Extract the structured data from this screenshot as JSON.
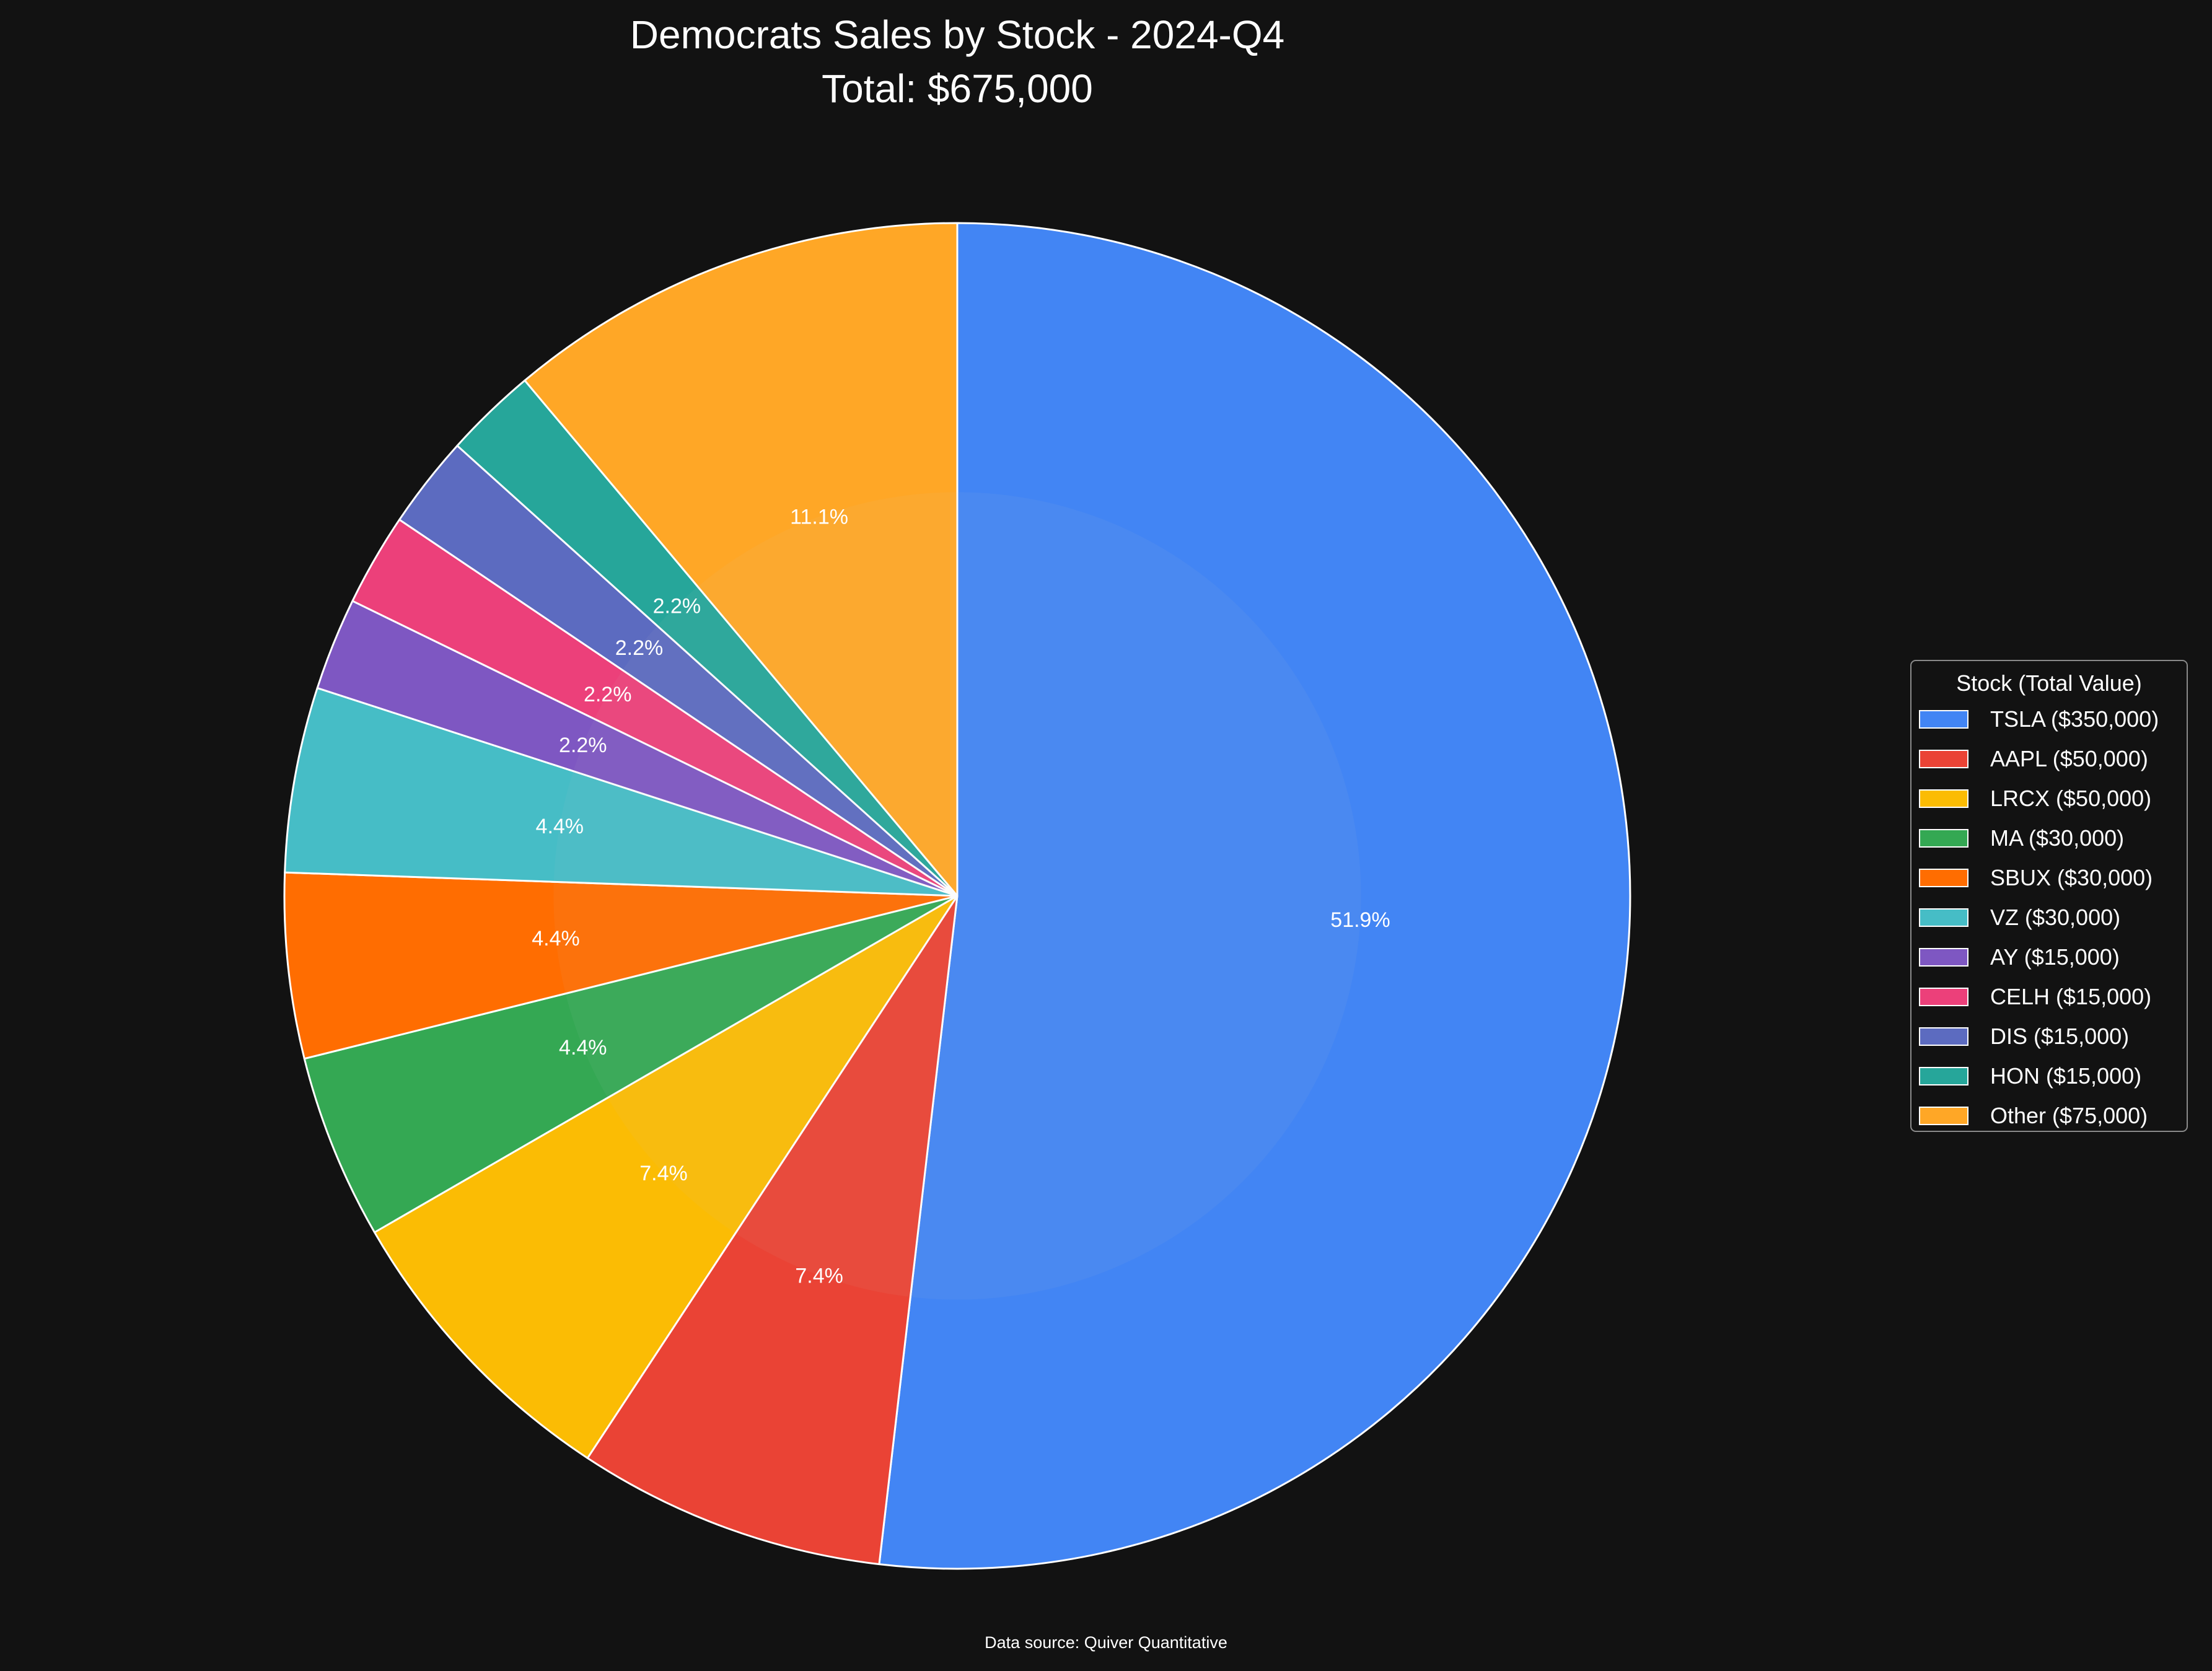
{
  "chart_data": {
    "type": "pie",
    "title": "Democrats Sales by Stock - 2024-Q4",
    "subtitle": "Total: $675,000",
    "legend_title": "Stock (Total Value)",
    "legend_position": "right",
    "source": "Data source: Quiver Quantitative",
    "start_angle_deg": 90,
    "direction": "clockwise",
    "slices": [
      {
        "name": "TSLA",
        "value": 350000,
        "pct_label": "51.9%",
        "legend_label": "TSLA ($350,000)",
        "color": "#4285f4"
      },
      {
        "name": "AAPL",
        "value": 50000,
        "pct_label": "7.4%",
        "legend_label": "AAPL ($50,000)",
        "color": "#ea4335"
      },
      {
        "name": "LRCX",
        "value": 50000,
        "pct_label": "7.4%",
        "legend_label": "LRCX ($50,000)",
        "color": "#fbbc04"
      },
      {
        "name": "MA",
        "value": 30000,
        "pct_label": "4.4%",
        "legend_label": "MA ($30,000)",
        "color": "#34a853"
      },
      {
        "name": "SBUX",
        "value": 30000,
        "pct_label": "4.4%",
        "legend_label": "SBUX ($30,000)",
        "color": "#ff6d01"
      },
      {
        "name": "VZ",
        "value": 30000,
        "pct_label": "4.4%",
        "legend_label": "VZ ($30,000)",
        "color": "#46bdc6"
      },
      {
        "name": "AY",
        "value": 15000,
        "pct_label": "2.2%",
        "legend_label": "AY ($15,000)",
        "color": "#7e57c2"
      },
      {
        "name": "CELH",
        "value": 15000,
        "pct_label": "2.2%",
        "legend_label": "CELH ($15,000)",
        "color": "#ec407a"
      },
      {
        "name": "DIS",
        "value": 15000,
        "pct_label": "2.2%",
        "legend_label": "DIS ($15,000)",
        "color": "#5c6bc0"
      },
      {
        "name": "HON",
        "value": 15000,
        "pct_label": "2.2%",
        "legend_label": "HON ($15,000)",
        "color": "#26a69a"
      },
      {
        "name": "Other",
        "value": 75000,
        "pct_label": "11.1%",
        "legend_label": "Other ($75,000)",
        "color": "#ffa726"
      }
    ]
  },
  "colors": {
    "background": "#121212",
    "text": "#ffffff",
    "slice_edge": "#ffffff",
    "legend_border": "#8a8a8a"
  }
}
